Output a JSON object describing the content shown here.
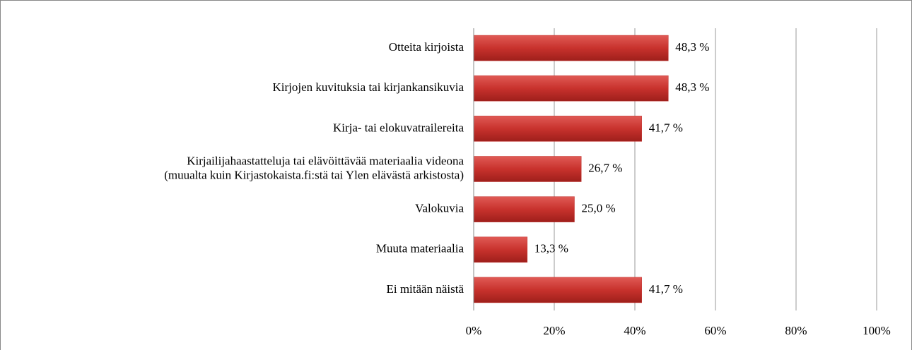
{
  "chart_data": {
    "type": "bar",
    "orientation": "horizontal",
    "categories": [
      "Otteita kirjoista",
      "Kirjojen kuvituksia tai kirjankansikuvia",
      "Kirja- tai elokuvatrailereita",
      [
        "Kirjailijahaastatteluja tai elävöittävää materiaalia videona",
        "(muualta kuin Kirjastokaista.fi:stä tai Ylen elävästä arkistosta)"
      ],
      "Valokuvia",
      "Muuta materiaalia",
      "Ei mitään näistä"
    ],
    "values": [
      48.3,
      48.3,
      41.7,
      26.7,
      25.0,
      13.3,
      41.7
    ],
    "value_labels": [
      "48,3 %",
      "48,3 %",
      "41,7 %",
      "26,7 %",
      "25,0 %",
      "13,3 %",
      "41,7 %"
    ],
    "color": "#c0302c",
    "xlim": [
      0,
      100
    ],
    "xticks": [
      {
        "value": 0,
        "label": "0%"
      },
      {
        "value": 20,
        "label": "20%"
      },
      {
        "value": 40,
        "label": "40%"
      },
      {
        "value": 60,
        "label": "60%"
      },
      {
        "value": 80,
        "label": "80%"
      },
      {
        "value": 100,
        "label": "100%"
      }
    ],
    "grid": true
  }
}
